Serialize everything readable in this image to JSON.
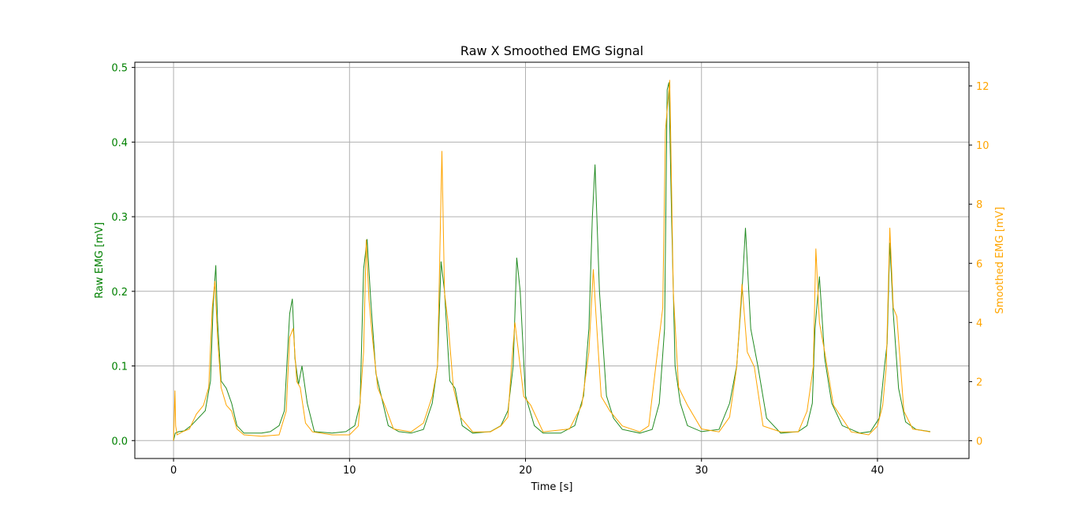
{
  "chart_data": {
    "type": "line",
    "title": "Raw X Smoothed EMG Signal",
    "xlabel": "Time [s]",
    "ylabel_left": "Raw EMG [mV]",
    "ylabel_right": "Smoothed EMG [mV]",
    "xlim": [
      -2.2,
      45.2
    ],
    "ylim_left": [
      -0.024,
      0.507
    ],
    "ylim_right": [
      -0.6,
      12.8
    ],
    "x_ticks": [
      0,
      10,
      20,
      30,
      40
    ],
    "y_ticks_left": [
      0.0,
      0.1,
      0.2,
      0.3,
      0.4,
      0.5
    ],
    "y_ticks_right": [
      0,
      2,
      4,
      6,
      8,
      10,
      12
    ],
    "grid": true,
    "colors": {
      "raw": "#228b22",
      "smoothed": "#ffa500",
      "axis_left": "#008000",
      "axis_right": "#ffa500"
    },
    "series": [
      {
        "key": "raw",
        "axis": "left",
        "x": [
          0,
          0.1,
          0.3,
          0.6,
          1.0,
          1.4,
          1.8,
          2.1,
          2.25,
          2.4,
          2.5,
          2.7,
          3.0,
          3.3,
          3.6,
          4.0,
          5.0,
          5.5,
          6.0,
          6.3,
          6.6,
          6.75,
          6.9,
          7.1,
          7.3,
          7.6,
          8.0,
          9.0,
          9.8,
          10.3,
          10.6,
          10.8,
          11.0,
          11.2,
          11.5,
          11.8,
          12.2,
          12.8,
          13.5,
          14.2,
          14.7,
          15.0,
          15.2,
          15.4,
          15.7,
          16.0,
          16.4,
          17.0,
          18.0,
          18.6,
          19.0,
          19.3,
          19.5,
          19.7,
          20.0,
          20.5,
          21.0,
          22.0,
          22.8,
          23.3,
          23.6,
          23.8,
          23.95,
          24.2,
          24.6,
          25.0,
          25.5,
          26.5,
          27.2,
          27.6,
          27.9,
          28.05,
          28.15,
          28.3,
          28.5,
          28.8,
          29.2,
          30.0,
          31.0,
          31.6,
          32.0,
          32.3,
          32.5,
          32.8,
          33.2,
          33.7,
          34.5,
          35.5,
          36.0,
          36.3,
          36.45,
          36.7,
          37.0,
          37.4,
          38.0,
          39.0,
          39.6,
          40.1,
          40.4,
          40.55,
          40.7,
          40.9,
          41.2,
          41.6,
          42.2,
          43.0
        ],
        "y": [
          0.0,
          0.01,
          0.012,
          0.013,
          0.02,
          0.03,
          0.04,
          0.08,
          0.18,
          0.235,
          0.16,
          0.08,
          0.07,
          0.05,
          0.02,
          0.01,
          0.01,
          0.012,
          0.02,
          0.04,
          0.17,
          0.19,
          0.11,
          0.075,
          0.1,
          0.05,
          0.012,
          0.01,
          0.012,
          0.02,
          0.05,
          0.23,
          0.27,
          0.19,
          0.09,
          0.06,
          0.02,
          0.012,
          0.01,
          0.015,
          0.05,
          0.1,
          0.24,
          0.2,
          0.08,
          0.07,
          0.02,
          0.01,
          0.012,
          0.02,
          0.04,
          0.1,
          0.245,
          0.2,
          0.06,
          0.02,
          0.01,
          0.01,
          0.02,
          0.06,
          0.15,
          0.3,
          0.37,
          0.2,
          0.06,
          0.03,
          0.015,
          0.01,
          0.015,
          0.05,
          0.15,
          0.47,
          0.48,
          0.3,
          0.1,
          0.05,
          0.02,
          0.012,
          0.015,
          0.05,
          0.1,
          0.2,
          0.285,
          0.15,
          0.1,
          0.03,
          0.01,
          0.012,
          0.02,
          0.05,
          0.15,
          0.22,
          0.11,
          0.05,
          0.02,
          0.01,
          0.012,
          0.03,
          0.1,
          0.13,
          0.265,
          0.17,
          0.07,
          0.025,
          0.015,
          0.012
        ]
      },
      {
        "key": "smoothed",
        "axis": "right",
        "x": [
          0,
          0.08,
          0.12,
          0.2,
          0.5,
          0.9,
          1.3,
          1.7,
          2.0,
          2.2,
          2.35,
          2.5,
          2.7,
          3.0,
          3.3,
          3.6,
          4.0,
          5.0,
          6.0,
          6.4,
          6.6,
          6.8,
          7.0,
          7.2,
          7.5,
          7.9,
          9.0,
          10.0,
          10.5,
          10.8,
          10.95,
          11.1,
          11.3,
          11.6,
          12.0,
          12.5,
          13.5,
          14.2,
          14.7,
          15.0,
          15.25,
          15.4,
          15.6,
          15.9,
          16.3,
          17.0,
          18.0,
          18.6,
          19.0,
          19.2,
          19.4,
          19.6,
          19.9,
          20.3,
          21.0,
          22.5,
          23.2,
          23.6,
          23.85,
          24.0,
          24.3,
          24.8,
          25.5,
          26.5,
          27.0,
          27.4,
          27.8,
          27.95,
          28.2,
          28.4,
          28.7,
          29.2,
          30.0,
          31.0,
          31.6,
          32.0,
          32.3,
          32.6,
          33.0,
          33.5,
          34.5,
          35.5,
          36.0,
          36.35,
          36.5,
          36.7,
          37.0,
          37.5,
          38.5,
          39.5,
          40.0,
          40.3,
          40.5,
          40.7,
          40.9,
          41.1,
          41.5,
          42.0,
          43.0
        ],
        "y": [
          0,
          1.7,
          0.5,
          0.2,
          0.3,
          0.4,
          0.9,
          1.2,
          1.8,
          4.5,
          5.4,
          3.5,
          1.8,
          1.2,
          1.0,
          0.4,
          0.2,
          0.15,
          0.2,
          1.0,
          3.5,
          3.8,
          2.0,
          1.8,
          0.6,
          0.3,
          0.2,
          0.2,
          0.5,
          3.0,
          6.8,
          4.8,
          3.5,
          1.8,
          1.2,
          0.4,
          0.3,
          0.6,
          1.5,
          2.5,
          9.8,
          5.0,
          4.0,
          1.8,
          0.8,
          0.3,
          0.3,
          0.5,
          0.8,
          2.5,
          4.0,
          3.0,
          1.5,
          1.2,
          0.3,
          0.4,
          1.2,
          3.0,
          5.8,
          4.3,
          1.5,
          1.0,
          0.5,
          0.3,
          0.5,
          2.5,
          4.5,
          10.5,
          12.2,
          5.0,
          1.8,
          1.2,
          0.4,
          0.3,
          0.8,
          2.5,
          5.3,
          3.0,
          2.5,
          0.5,
          0.3,
          0.3,
          1.0,
          2.5,
          6.5,
          4.0,
          3.0,
          1.2,
          0.3,
          0.2,
          0.5,
          1.2,
          2.5,
          7.2,
          4.5,
          4.2,
          1.0,
          0.4,
          0.3
        ]
      }
    ]
  }
}
